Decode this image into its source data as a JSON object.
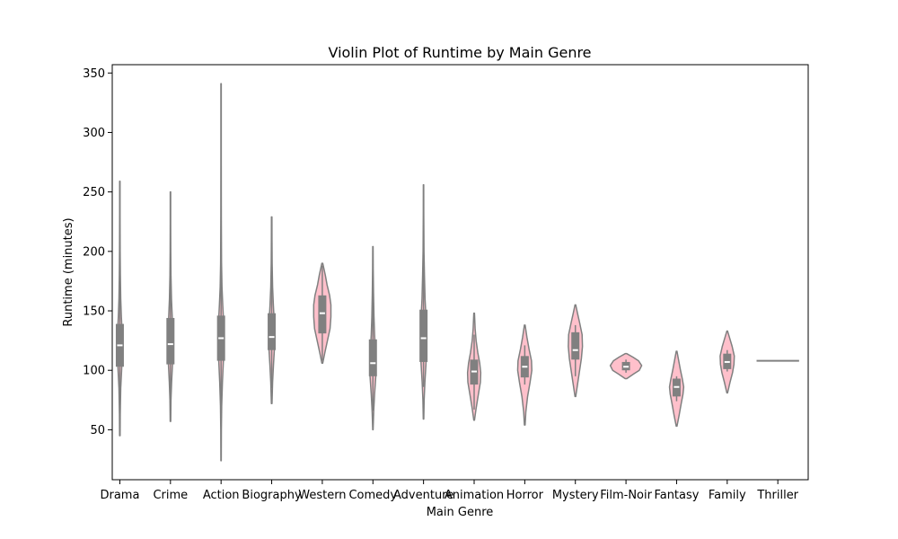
{
  "chart_data": {
    "type": "violin",
    "title": "Violin Plot of Runtime by Main Genre",
    "xlabel": "Main Genre",
    "ylabel": "Runtime (minutes)",
    "ylim": [
      8,
      357
    ],
    "yticks": [
      50,
      100,
      150,
      200,
      250,
      300,
      350
    ],
    "grid": false,
    "colors": {
      "fill": "#ffc0cb",
      "stroke": "#808080",
      "box": "#808080",
      "median": "#ffffff",
      "axis": "#000000"
    },
    "categories": [
      "Drama",
      "Crime",
      "Action",
      "Biography",
      "Western",
      "Comedy",
      "Adventure",
      "Animation",
      "Horror",
      "Mystery",
      "Film-Noir",
      "Fantasy",
      "Family",
      "Thriller"
    ],
    "violins": [
      {
        "min": 45,
        "max": 259,
        "q1": 103,
        "median": 121,
        "q3": 139,
        "wlo": 63,
        "whi": 183,
        "width": 0.05,
        "profile": [
          [
            45,
            0.1
          ],
          [
            63,
            0.15
          ],
          [
            85,
            0.35
          ],
          [
            100,
            0.7
          ],
          [
            112,
            0.9
          ],
          [
            121,
            1
          ],
          [
            132,
            0.9
          ],
          [
            145,
            0.6
          ],
          [
            160,
            0.35
          ],
          [
            180,
            0.2
          ],
          [
            200,
            0.12
          ],
          [
            230,
            0.08
          ],
          [
            259,
            0.08
          ]
        ]
      },
      {
        "min": 57,
        "max": 250,
        "q1": 105,
        "median": 122,
        "q3": 144,
        "wlo": 75,
        "whi": 190,
        "width": 0.05,
        "profile": [
          [
            57,
            0.1
          ],
          [
            75,
            0.2
          ],
          [
            90,
            0.45
          ],
          [
            105,
            0.8
          ],
          [
            118,
            1
          ],
          [
            130,
            0.9
          ],
          [
            145,
            0.7
          ],
          [
            160,
            0.4
          ],
          [
            180,
            0.2
          ],
          [
            200,
            0.12
          ],
          [
            225,
            0.08
          ],
          [
            250,
            0.08
          ]
        ]
      },
      {
        "min": 24,
        "max": 341,
        "q1": 108,
        "median": 127,
        "q3": 146,
        "wlo": 65,
        "whi": 180,
        "width": 0.06,
        "profile": [
          [
            24,
            0.06
          ],
          [
            50,
            0.1
          ],
          [
            70,
            0.2
          ],
          [
            90,
            0.45
          ],
          [
            110,
            0.8
          ],
          [
            125,
            1
          ],
          [
            140,
            0.85
          ],
          [
            155,
            0.55
          ],
          [
            170,
            0.3
          ],
          [
            190,
            0.15
          ],
          [
            230,
            0.08
          ],
          [
            280,
            0.06
          ],
          [
            341,
            0.06
          ]
        ]
      },
      {
        "min": 72,
        "max": 229,
        "q1": 117,
        "median": 128,
        "q3": 148,
        "wlo": 85,
        "whi": 205,
        "width": 0.06,
        "profile": [
          [
            72,
            0.1
          ],
          [
            90,
            0.3
          ],
          [
            105,
            0.6
          ],
          [
            118,
            0.9
          ],
          [
            128,
            1
          ],
          [
            140,
            0.85
          ],
          [
            155,
            0.55
          ],
          [
            170,
            0.3
          ],
          [
            190,
            0.15
          ],
          [
            210,
            0.1
          ],
          [
            229,
            0.08
          ]
        ]
      },
      {
        "min": 106,
        "max": 190,
        "q1": 131,
        "median": 148,
        "q3": 163,
        "wlo": 108,
        "whi": 188,
        "width": 0.17,
        "profile": [
          [
            106,
            0.05
          ],
          [
            115,
            0.3
          ],
          [
            125,
            0.6
          ],
          [
            135,
            0.9
          ],
          [
            145,
            1
          ],
          [
            155,
            1
          ],
          [
            163,
            0.85
          ],
          [
            172,
            0.55
          ],
          [
            180,
            0.35
          ],
          [
            190,
            0.05
          ]
        ]
      },
      {
        "min": 50,
        "max": 204,
        "q1": 95,
        "median": 106,
        "q3": 126,
        "wlo": 66,
        "whi": 167,
        "width": 0.06,
        "profile": [
          [
            50,
            0.06
          ],
          [
            65,
            0.25
          ],
          [
            80,
            0.55
          ],
          [
            95,
            0.95
          ],
          [
            105,
            1
          ],
          [
            118,
            0.8
          ],
          [
            130,
            0.55
          ],
          [
            145,
            0.35
          ],
          [
            165,
            0.2
          ],
          [
            185,
            0.1
          ],
          [
            204,
            0.06
          ]
        ]
      },
      {
        "min": 59,
        "max": 256,
        "q1": 107,
        "median": 127,
        "q3": 151,
        "wlo": 86,
        "whi": 197,
        "width": 0.06,
        "profile": [
          [
            59,
            0.08
          ],
          [
            75,
            0.2
          ],
          [
            90,
            0.45
          ],
          [
            105,
            0.8
          ],
          [
            118,
            1
          ],
          [
            130,
            0.95
          ],
          [
            145,
            0.8
          ],
          [
            160,
            0.5
          ],
          [
            180,
            0.3
          ],
          [
            200,
            0.15
          ],
          [
            230,
            0.08
          ],
          [
            256,
            0.06
          ]
        ]
      },
      {
        "min": 58,
        "max": 148,
        "q1": 88,
        "median": 99,
        "q3": 109,
        "wlo": 67,
        "whi": 130,
        "width": 0.13,
        "profile": [
          [
            58,
            0.05
          ],
          [
            68,
            0.3
          ],
          [
            80,
            0.65
          ],
          [
            90,
            0.95
          ],
          [
            98,
            1
          ],
          [
            106,
            0.85
          ],
          [
            115,
            0.55
          ],
          [
            125,
            0.3
          ],
          [
            135,
            0.15
          ],
          [
            148,
            0.05
          ]
        ]
      },
      {
        "min": 54,
        "max": 138,
        "q1": 94,
        "median": 103,
        "q3": 112,
        "wlo": 88,
        "whi": 121,
        "width": 0.14,
        "profile": [
          [
            54,
            0.05
          ],
          [
            65,
            0.15
          ],
          [
            78,
            0.4
          ],
          [
            90,
            0.75
          ],
          [
            100,
            1
          ],
          [
            108,
            0.95
          ],
          [
            118,
            0.6
          ],
          [
            128,
            0.3
          ],
          [
            138,
            0.05
          ]
        ]
      },
      {
        "min": 78,
        "max": 155,
        "q1": 109,
        "median": 117,
        "q3": 132,
        "wlo": 95,
        "whi": 138,
        "width": 0.14,
        "profile": [
          [
            78,
            0.05
          ],
          [
            88,
            0.3
          ],
          [
            100,
            0.6
          ],
          [
            110,
            0.85
          ],
          [
            120,
            1
          ],
          [
            130,
            0.95
          ],
          [
            140,
            0.6
          ],
          [
            148,
            0.3
          ],
          [
            155,
            0.05
          ]
        ]
      },
      {
        "min": 93,
        "max": 114,
        "q1": 100,
        "median": 103,
        "q3": 107,
        "wlo": 98,
        "whi": 109,
        "width": 0.31,
        "profile": [
          [
            93,
            0.05
          ],
          [
            97,
            0.5
          ],
          [
            100,
            0.85
          ],
          [
            104,
            1
          ],
          [
            108,
            0.8
          ],
          [
            111,
            0.45
          ],
          [
            114,
            0.05
          ]
        ]
      },
      {
        "min": 53,
        "max": 116,
        "q1": 78,
        "median": 86,
        "q3": 93,
        "wlo": 74,
        "whi": 95,
        "width": 0.14,
        "profile": [
          [
            53,
            0.05
          ],
          [
            62,
            0.35
          ],
          [
            72,
            0.65
          ],
          [
            80,
            0.9
          ],
          [
            86,
            1
          ],
          [
            93,
            0.8
          ],
          [
            100,
            0.55
          ],
          [
            108,
            0.3
          ],
          [
            116,
            0.05
          ]
        ]
      },
      {
        "min": 81,
        "max": 133,
        "q1": 101,
        "median": 107,
        "q3": 114,
        "wlo": 99,
        "whi": 117,
        "width": 0.14,
        "profile": [
          [
            81,
            0.05
          ],
          [
            90,
            0.4
          ],
          [
            98,
            0.75
          ],
          [
            105,
            0.95
          ],
          [
            112,
            1
          ],
          [
            120,
            0.7
          ],
          [
            127,
            0.35
          ],
          [
            133,
            0.05
          ]
        ]
      },
      {
        "min": 108,
        "max": 108,
        "q1": 108,
        "median": 108,
        "q3": 108,
        "wlo": 108,
        "whi": 108,
        "width": 0.42,
        "profile": []
      }
    ]
  }
}
